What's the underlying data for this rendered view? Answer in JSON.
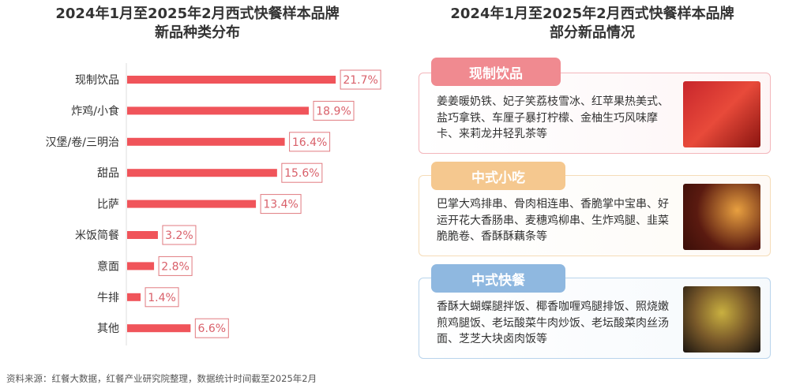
{
  "left_title": [
    "2024年1月至2025年2月西式快餐样本品牌",
    "新品种类分布"
  ],
  "right_title": [
    "2024年1月至2025年2月西式快餐样本品牌",
    "部分新品情况"
  ],
  "chart_data": {
    "type": "bar",
    "orientation": "horizontal",
    "categories": [
      "现制饮品",
      "炸鸡/小食",
      "汉堡/卷/三明治",
      "甜品",
      "比萨",
      "米饭简餐",
      "意面",
      "牛排",
      "其他"
    ],
    "values": [
      21.7,
      18.9,
      16.4,
      15.6,
      13.4,
      3.2,
      2.8,
      1.4,
      6.6
    ],
    "labels": [
      "21.7%",
      "18.9%",
      "16.4%",
      "15.6%",
      "13.4%",
      "3.2%",
      "2.8%",
      "1.4%",
      "6.6%"
    ],
    "unit": "%",
    "bar_color": "#f0545a",
    "grid": false
  },
  "cards": [
    {
      "tag": "现制饮品",
      "text": "姜姜暖奶铁、妃子笑荔枝雪冰、红苹果热美式、盐巧拿铁、车厘子暴打柠檬、金柚生巧风味摩卡、来莉龙井轻乳茶等",
      "color": "#f08a90",
      "border": "#f3b6bb",
      "photo": "drinks"
    },
    {
      "tag": "中式小吃",
      "text": "巴掌大鸡排串、骨肉相连串、香脆掌中宝串、好运开花大香肠串、麦穗鸡柳串、生炸鸡腿、韭菜脆脆卷、香酥酥藕条等",
      "color": "#f5c88f",
      "border": "#f5dcb8",
      "photo": "skewers"
    },
    {
      "tag": "中式快餐",
      "text": "香酥大蝴蝶腿拌饭、椰香咖喱鸡腿排饭、照烧嫩煎鸡腿饭、老坛酸菜牛肉炒饭、老坛酸菜肉丝汤面、芝芝大块卤肉饭等",
      "color": "#8fb8e0",
      "border": "#b9d4ec",
      "photo": "fried rice"
    }
  ],
  "source": "资料来源：红餐大数据，红餐产业研究院整理，数据统计时间截至2025年2月"
}
